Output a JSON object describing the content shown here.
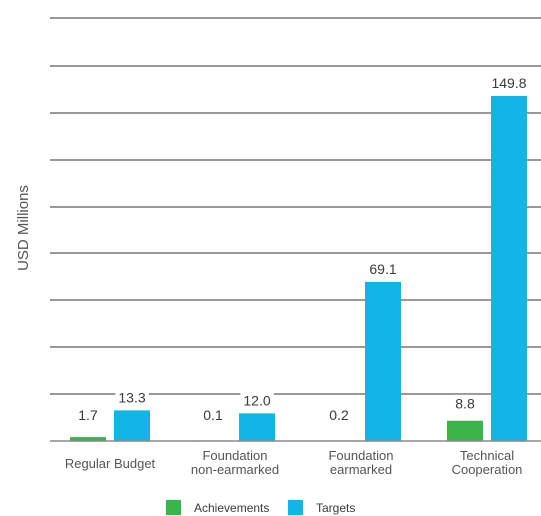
{
  "chart_data": {
    "type": "bar",
    "categories": [
      [
        "Regular Budget"
      ],
      [
        "Foundation",
        "non-earmarked"
      ],
      [
        "Foundation",
        "earmarked"
      ],
      [
        "Technical",
        "Cooperation"
      ]
    ],
    "series": [
      {
        "name": "Achievements",
        "color": "#3bb54a",
        "values": [
          1.7,
          0.1,
          0.2,
          8.8
        ],
        "labels": [
          "1.7",
          "0.1",
          "0.2",
          "8.8"
        ]
      },
      {
        "name": "Targets",
        "color": "#12b5e5",
        "values": [
          13.3,
          12.0,
          69.1,
          149.8
        ],
        "labels": [
          "13.3",
          "12.0",
          "69.1",
          "149.8"
        ]
      }
    ],
    "ylabel": "USD Millions",
    "ylim": [
      0,
      150
    ],
    "grid": true,
    "legend": "bottom-center"
  }
}
